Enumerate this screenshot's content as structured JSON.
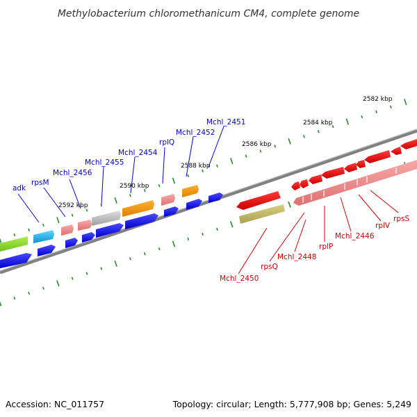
{
  "header": {
    "title": "Methylobacterium chloromethanicum CM4, complete genome"
  },
  "footer": {
    "accession": "Accession: NC_011757",
    "topology": "Topology: circular; Length: 5,777,908 bp; Genes: 5,249"
  },
  "scale_labels": [
    "2582 kbp",
    "2584 kbp",
    "2586 kbp",
    "2588 kbp",
    "2590 kbp",
    "2592 kbp"
  ],
  "colors": {
    "forward_label": "#0000cc",
    "reverse_label": "#cc0000",
    "tick": "#228b22",
    "backbone": "#808080"
  },
  "labels_forward": [
    "adk",
    "rpsM",
    "Mchl_2456",
    "Mchl_2455",
    "Mchl_2454",
    "rplQ",
    "Mchl_2452",
    "Mchl_2451"
  ],
  "labels_reverse": [
    "Mchl_2450",
    "rpsQ",
    "Mchl_2448",
    "rplP",
    "Mchl_2446",
    "rplV",
    "rpsS"
  ]
}
